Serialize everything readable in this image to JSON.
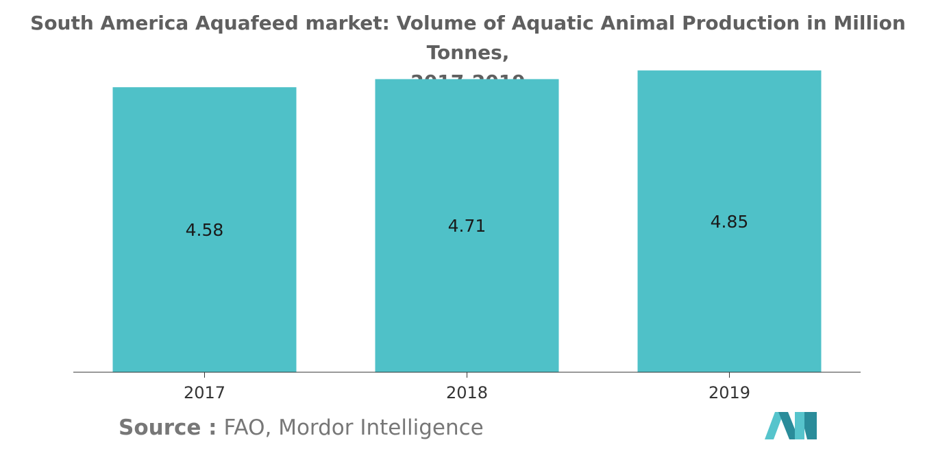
{
  "title": {
    "line1": "South America Aquafeed market: Volume of Aquatic Animal Production in Million Tonnes,",
    "line2": "2017-2019"
  },
  "chart_data": {
    "type": "bar",
    "categories": [
      "2017",
      "2018",
      "2019"
    ],
    "values": [
      4.58,
      4.71,
      4.85
    ],
    "data_labels": [
      "4.58",
      "4.71",
      "4.85"
    ],
    "title": "South America Aquafeed market: Volume of Aquatic Animal Production in Million Tonnes, 2017-2019",
    "xlabel": "",
    "ylabel": "",
    "ylim": [
      0,
      4.99
    ],
    "grid": false,
    "legend": "none",
    "bar_color": "#4fc1c8"
  },
  "source": {
    "label": "Source :",
    "text": "FAO, Mordor Intelligence"
  },
  "colors": {
    "bar": "#4fc1c8",
    "title": "#5f5f5f",
    "axis": "#333333",
    "logo_dark": "#2a8c9a",
    "logo_light": "#56c4cc"
  },
  "logo": {
    "icon": "mordor-intelligence-logo-icon"
  }
}
